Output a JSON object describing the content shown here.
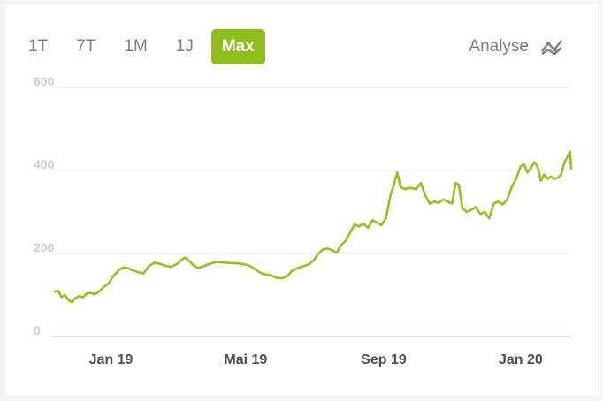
{
  "range_tabs": [
    {
      "label": "1T",
      "active": false
    },
    {
      "label": "7T",
      "active": false
    },
    {
      "label": "1M",
      "active": false
    },
    {
      "label": "1J",
      "active": false
    },
    {
      "label": "Max",
      "active": true
    }
  ],
  "analyse": {
    "label": "Analyse",
    "icon": "analyse-chart-icon"
  },
  "colors": {
    "accent": "#8fbd1e",
    "line": "#93c11f",
    "grid": "#dfe6ee",
    "axis_text": "#c8ced6",
    "x_label": "#4a4f55"
  },
  "chart_data": {
    "type": "line",
    "ylim": [
      0,
      600
    ],
    "yticks": [
      0,
      200,
      400,
      600
    ],
    "x_tick_labels": [
      "Jan 19",
      "Mai 19",
      "Sep 19",
      "Jan 20"
    ],
    "x_tick_dates": [
      "2019-01-01",
      "2019-05-01",
      "2019-09-01",
      "2020-01-01"
    ],
    "xlim": [
      "2018-11-12",
      "2020-02-15"
    ],
    "grid": true,
    "series": [
      {
        "x": [
          "2018-11-12",
          "2018-11-15",
          "2018-11-18",
          "2018-11-21",
          "2018-11-24",
          "2018-11-27",
          "2018-11-30",
          "2018-12-04",
          "2018-12-07",
          "2018-12-10",
          "2018-12-14",
          "2018-12-18",
          "2018-12-22",
          "2018-12-26",
          "2018-12-30",
          "2019-01-03",
          "2019-01-08",
          "2019-01-12",
          "2019-01-16",
          "2019-01-20",
          "2019-01-25",
          "2019-01-30",
          "2019-02-04",
          "2019-02-09",
          "2019-02-14",
          "2019-02-19",
          "2019-02-24",
          "2019-03-01",
          "2019-03-05",
          "2019-03-08",
          "2019-03-12",
          "2019-03-16",
          "2019-03-20",
          "2019-03-25",
          "2019-03-30",
          "2019-04-05",
          "2019-04-12",
          "2019-04-19",
          "2019-04-26",
          "2019-05-03",
          "2019-05-08",
          "2019-05-13",
          "2019-05-18",
          "2019-05-23",
          "2019-05-28",
          "2019-06-02",
          "2019-06-07",
          "2019-06-12",
          "2019-06-17",
          "2019-06-22",
          "2019-06-27",
          "2019-07-01",
          "2019-07-05",
          "2019-07-09",
          "2019-07-13",
          "2019-07-17",
          "2019-07-21",
          "2019-07-25",
          "2019-07-29",
          "2019-08-02",
          "2019-08-06",
          "2019-08-10",
          "2019-08-14",
          "2019-08-18",
          "2019-08-22",
          "2019-08-26",
          "2019-08-30",
          "2019-09-03",
          "2019-09-07",
          "2019-09-10",
          "2019-09-13",
          "2019-09-16",
          "2019-09-20",
          "2019-09-25",
          "2019-09-30",
          "2019-10-04",
          "2019-10-08",
          "2019-10-12",
          "2019-10-16",
          "2019-10-20",
          "2019-10-24",
          "2019-10-28",
          "2019-11-01",
          "2019-11-04",
          "2019-11-07",
          "2019-11-10",
          "2019-11-14",
          "2019-11-18",
          "2019-11-22",
          "2019-11-26",
          "2019-11-30",
          "2019-12-04",
          "2019-12-08",
          "2019-12-12",
          "2019-12-16",
          "2019-12-20",
          "2019-12-24",
          "2019-12-28",
          "2020-01-01",
          "2020-01-04",
          "2020-01-07",
          "2020-01-10",
          "2020-01-13",
          "2020-01-16",
          "2020-01-19",
          "2020-01-22",
          "2020-01-25",
          "2020-01-28",
          "2020-01-31",
          "2020-02-03",
          "2020-02-06",
          "2020-02-09",
          "2020-02-12",
          "2020-02-14",
          "2020-02-15"
        ],
        "y": [
          108,
          110,
          95,
          100,
          88,
          83,
          92,
          98,
          94,
          103,
          105,
          102,
          110,
          120,
          128,
          145,
          160,
          166,
          165,
          160,
          155,
          152,
          170,
          178,
          175,
          170,
          168,
          175,
          185,
          190,
          182,
          170,
          165,
          170,
          175,
          180,
          178,
          177,
          176,
          172,
          165,
          155,
          150,
          148,
          142,
          140,
          145,
          160,
          165,
          170,
          175,
          185,
          200,
          210,
          212,
          208,
          202,
          220,
          230,
          250,
          270,
          265,
          272,
          262,
          280,
          275,
          268,
          285,
          340,
          365,
          395,
          360,
          355,
          358,
          355,
          370,
          340,
          320,
          325,
          322,
          330,
          325,
          320,
          370,
          365,
          310,
          300,
          305,
          312,
          295,
          300,
          285,
          320,
          325,
          318,
          330,
          360,
          380,
          410,
          415,
          395,
          405,
          420,
          410,
          375,
          390,
          380,
          385,
          380,
          382,
          390,
          420,
          435,
          445,
          405
        ]
      }
    ]
  }
}
